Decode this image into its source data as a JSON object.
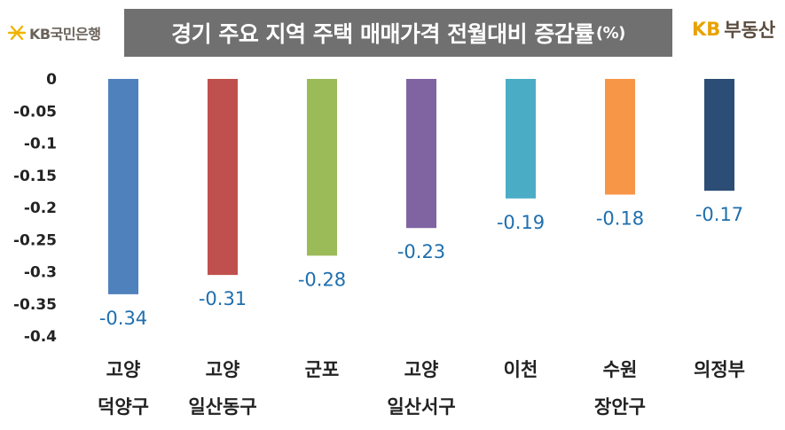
{
  "header": {
    "logo_text": "KB국민은행",
    "title": "경기 주요 지역 주택 매매가격 전월대비 증감률",
    "title_unit": "(%)",
    "brand_kb": "KB",
    "brand_name": "부동산",
    "logo_icon": "kb-star-icon",
    "title_bg": "#707070"
  },
  "chart_data": {
    "type": "bar",
    "title": "경기 주요 지역 주택 매매가격 전월대비 증감률(%)",
    "categories": [
      [
        "고양",
        "덕양구"
      ],
      [
        "고양",
        "일산동구"
      ],
      [
        "군포"
      ],
      [
        "고양",
        "일산서구"
      ],
      [
        "이천"
      ],
      [
        "수원",
        "장안구"
      ],
      [
        "의정부"
      ]
    ],
    "values": [
      -0.34,
      -0.31,
      -0.28,
      -0.23,
      -0.19,
      -0.18,
      -0.17
    ],
    "bar_heights": [
      -0.335,
      -0.305,
      -0.275,
      -0.232,
      -0.186,
      -0.18,
      -0.174
    ],
    "colors": [
      "#4f81bd",
      "#c0504d",
      "#9bbb59",
      "#8064a2",
      "#4bacc6",
      "#f79646",
      "#2c4d75"
    ],
    "ylim": [
      -0.4,
      0
    ],
    "yticks": [
      "0",
      "-0.05",
      "-0.1",
      "-0.15",
      "-0.2",
      "-0.25",
      "-0.3",
      "-0.35",
      "-0.4"
    ],
    "ytick_values": [
      0,
      -0.05,
      -0.1,
      -0.15,
      -0.2,
      -0.25,
      -0.3,
      -0.35,
      -0.4
    ],
    "xlabel": "",
    "ylabel": "",
    "grid": false,
    "legend": "none",
    "label_color": "#1f6fae"
  }
}
